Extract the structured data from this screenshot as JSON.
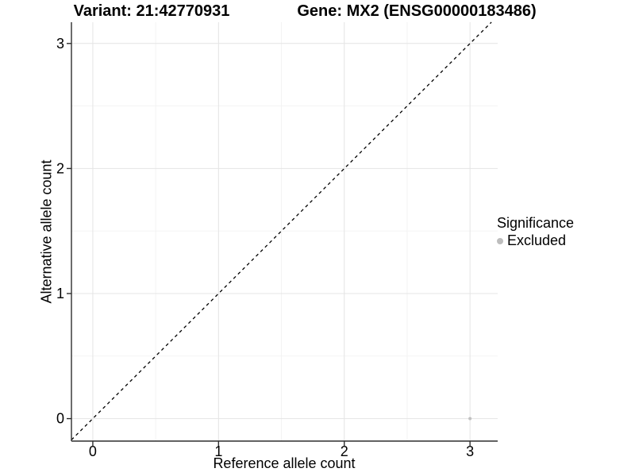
{
  "titles": {
    "variant": "Variant: 21:42770931",
    "gene": "Gene: MX2 (ENSG00000183486)"
  },
  "chart_data": {
    "type": "scatter",
    "title_left": "Variant: 21:42770931",
    "title_right": "Gene: MX2 (ENSG00000183486)",
    "xlabel": "Reference allele count",
    "ylabel": "Alternative allele count",
    "xlim": [
      -0.17,
      3.22
    ],
    "ylim": [
      -0.18,
      3.17
    ],
    "xticks": [
      0,
      1,
      2,
      3
    ],
    "yticks": [
      0,
      1,
      2,
      3
    ],
    "xticks_minor": [
      0.5,
      1.5,
      2.5
    ],
    "yticks_minor": [
      0.5,
      1.5,
      2.5
    ],
    "grid": "major+minor",
    "identity_line": {
      "slope": 1,
      "intercept": 0,
      "style": "dashed",
      "color": "#000000"
    },
    "series": [
      {
        "name": "Excluded",
        "color": "#c0c0c0",
        "marker": "circle",
        "size": 2,
        "points": [
          {
            "x": 3,
            "y": 0
          }
        ]
      }
    ],
    "legend": {
      "title": "Significance",
      "position": "right",
      "items": [
        {
          "label": "Excluded",
          "color": "#bdbdbd"
        }
      ]
    }
  },
  "colors": {
    "axis": "#2e2e2e",
    "grid_major": "#e4e4e4",
    "grid_minor": "#f2f2f2",
    "background": "#ffffff"
  }
}
